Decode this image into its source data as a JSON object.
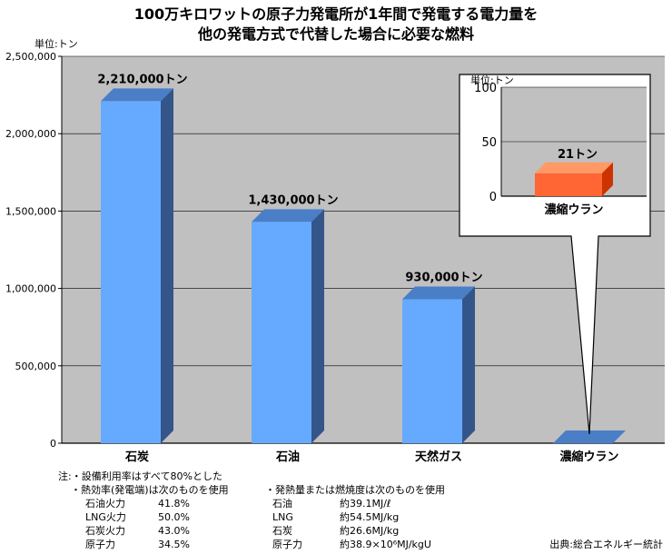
{
  "title_lines": [
    "100万キロワットの原子力発電所が1年間で発電する電力量を",
    "他の発電方式で代替した場合に必要な燃料"
  ],
  "unit_label": "単位:トン",
  "chart_data": {
    "type": "bar",
    "categories": [
      "石炭",
      "石油",
      "天然ガス",
      "濃縮ウラン"
    ],
    "values": [
      2210000,
      1430000,
      930000,
      21
    ],
    "data_labels": [
      "2,210,000トン",
      "1,430,000トン",
      "930,000トン",
      ""
    ],
    "ylim": [
      0,
      2500000
    ],
    "yticks": [
      0,
      500000,
      1000000,
      1500000,
      2000000,
      2500000
    ],
    "ytick_labels": [
      "0",
      "500,000",
      "1,000,000",
      "1,500,000",
      "2,000,000",
      "2,500,000"
    ],
    "grid": true,
    "colors": {
      "bar_front": "#66aaff",
      "bar_top": "#4a7fc8",
      "bar_side": "#33558a",
      "plot_bg": "#c0c0c0"
    },
    "inset": {
      "unit_label": "単位:トン",
      "category": "濃縮ウラン",
      "value": 21,
      "data_label": "21トン",
      "ylim": [
        0,
        100
      ],
      "yticks": [
        0,
        50,
        100
      ],
      "ytick_labels": [
        "0",
        "50",
        "100"
      ],
      "colors": {
        "bar_front": "#ff6633",
        "bar_top": "#ff9966",
        "bar_side": "#cc3300",
        "plot_bg": "#c0c0c0"
      }
    }
  },
  "notes": {
    "head": "注:・設備利用率はすべて80%とした",
    "efficiency_title": "・熱効率(発電端)は次のものを使用",
    "efficiency": [
      {
        "name": "石油火力",
        "value": "41.8%"
      },
      {
        "name": "LNG火力",
        "value": "50.0%"
      },
      {
        "name": "石炭火力",
        "value": "43.0%"
      },
      {
        "name": "原子力",
        "value": "34.5%"
      }
    ],
    "heat_title": "・発熱量または燃焼度は次のものを使用",
    "heat": [
      {
        "name": "石油",
        "value": "約39.1MJ/ℓ"
      },
      {
        "name": "LNG",
        "value": "約54.5MJ/kg"
      },
      {
        "name": "石炭",
        "value": "約26.6MJ/kg"
      },
      {
        "name": "原子力",
        "value": "約38.9×10⁶MJ/kgU"
      }
    ]
  },
  "source": "出典:総合エネルギー統計"
}
